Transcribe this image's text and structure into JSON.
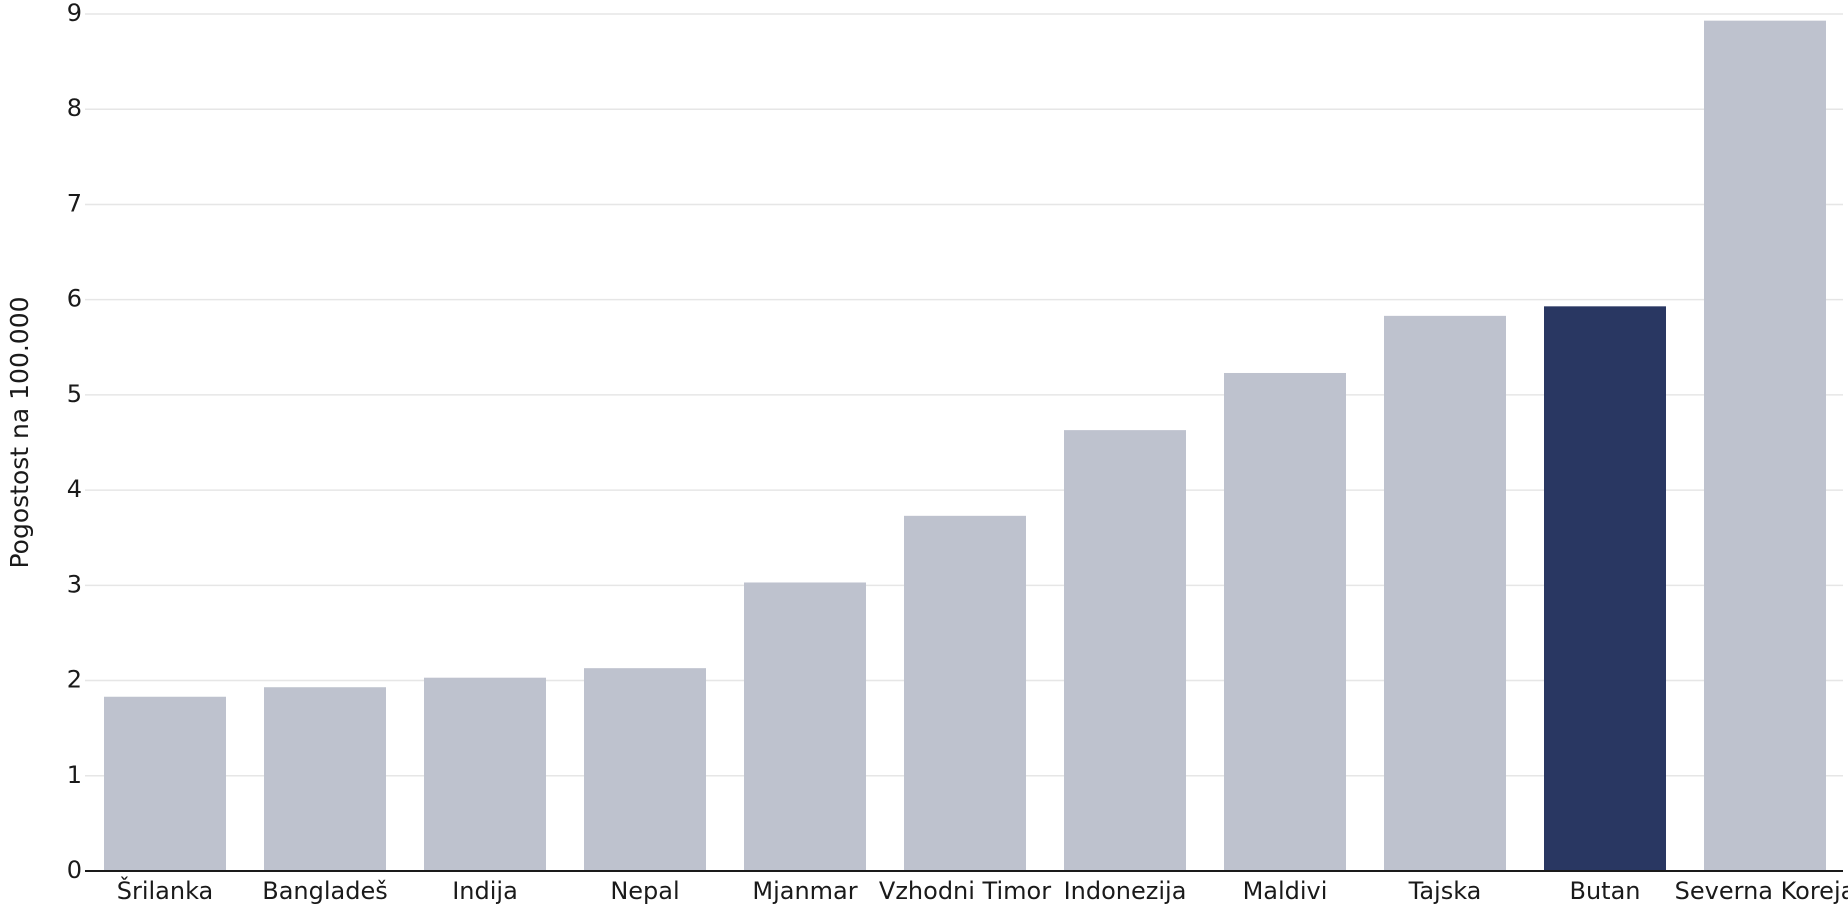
{
  "chart_data": {
    "type": "bar",
    "categories": [
      "Šrilanka",
      "Bangladeš",
      "Indija",
      "Nepal",
      "Mjanmar",
      "Vzhodni Timor",
      "Indonezija",
      "Maldivi",
      "Tajska",
      "Butan",
      "Severna Koreja"
    ],
    "values": [
      1.83,
      1.93,
      2.03,
      2.13,
      3.03,
      3.73,
      4.63,
      5.23,
      5.83,
      5.93,
      8.93
    ],
    "highlight": "Butan",
    "ylabel": "Pogostost na 100.000",
    "xlabel": "",
    "ylim": [
      0,
      9
    ],
    "yticks": [
      "0",
      "1",
      "2",
      "3",
      "4",
      "5",
      "6",
      "7",
      "8",
      "9"
    ],
    "grid": true,
    "colors": {
      "bar": "#bec2ce",
      "highlight": "#293762",
      "grid": "#e6e6e6",
      "axis": "#1a1a1a"
    }
  }
}
